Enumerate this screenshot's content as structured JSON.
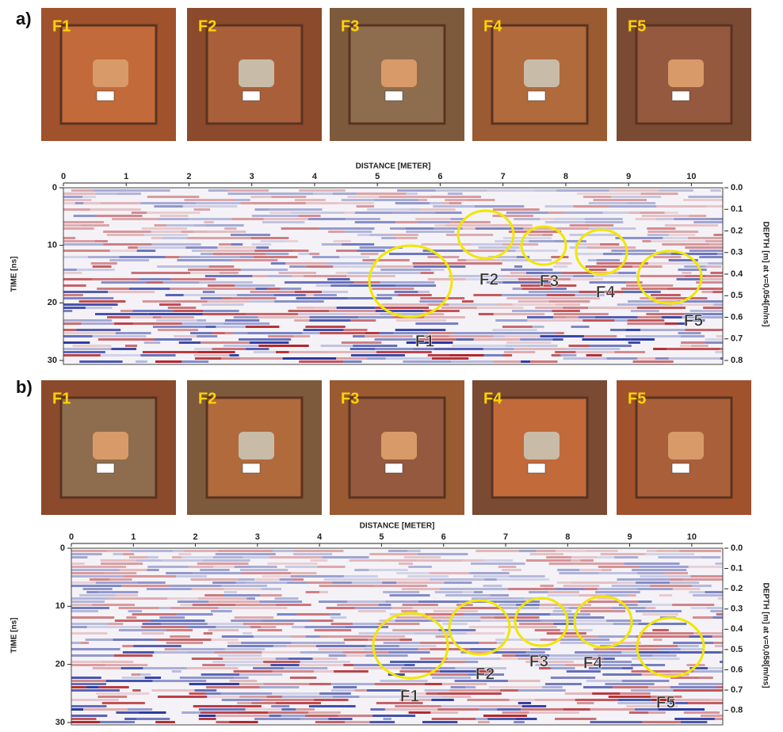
{
  "panels": [
    {
      "label": "a)",
      "photos": [
        "F1",
        "F2",
        "F3",
        "F4",
        "F5"
      ],
      "radargram": {
        "x_label": "DISTANCE [METER]",
        "y_label": "TIME [ns]",
        "y2_label": "DEPTH [m] at v=0,054[m/ns]",
        "xlim": [
          0,
          10.5
        ],
        "xticks": [
          0,
          1,
          2,
          3,
          4,
          5,
          6,
          7,
          8,
          9,
          10
        ],
        "ylim": [
          0,
          30
        ],
        "yticks": [
          0,
          10,
          20,
          30
        ],
        "y2lim": [
          0,
          0.8
        ],
        "y2ticks": [
          {
            "value": 0,
            "label": "0.0"
          },
          0.1,
          0.2,
          0.3,
          0.4,
          0.5,
          0.6,
          0.7,
          0.8
        ],
        "targets": [
          "F1",
          "F2",
          "F3",
          "F4",
          "F5"
        ]
      }
    },
    {
      "label": "b)",
      "photos": [
        "F1",
        "F2",
        "F3",
        "F4",
        "F5"
      ],
      "radargram": {
        "x_label": "DISTANCE [METER]",
        "y_label": "TIME [ns]",
        "y2_label": "DEPTH [m] at v=0,058[m/ns]",
        "xlim": [
          0,
          10.5
        ],
        "xticks": [
          0,
          1,
          2,
          3,
          4,
          5,
          6,
          7,
          8,
          9,
          10
        ],
        "ylim": [
          0,
          30
        ],
        "yticks": [
          0,
          10,
          20,
          30
        ],
        "y2lim": [
          0,
          0.86
        ],
        "y2ticks": [
          {
            "value": 0,
            "label": "0.0"
          },
          0.1,
          0.2,
          0.3,
          0.4,
          0.5,
          0.6,
          0.7,
          0.8
        ],
        "targets": [
          "F1",
          "F2",
          "F3",
          "F4",
          "F5"
        ]
      }
    }
  ]
}
